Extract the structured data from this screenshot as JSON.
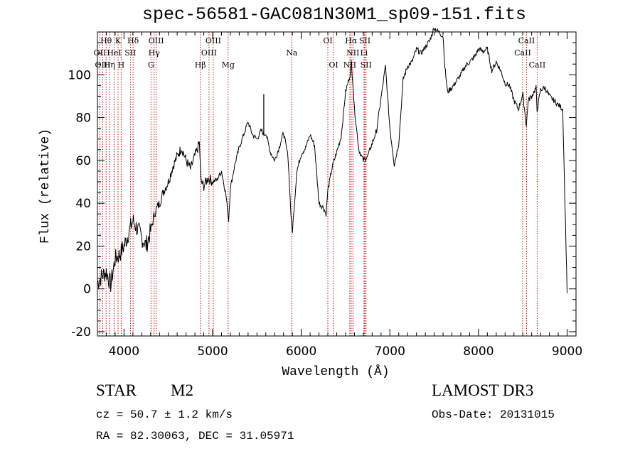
{
  "chart_data": {
    "type": "line",
    "title": "spec-56581-GAC081N30M1_sp09-151.fits",
    "xlabel": "Wavelength (Å)",
    "ylabel": "Flux (relative)",
    "xlim": [
      3700,
      9100
    ],
    "ylim": [
      -22,
      120
    ],
    "x_ticks": [
      4000,
      5000,
      6000,
      7000,
      8000,
      9000
    ],
    "y_ticks": [
      -20,
      0,
      20,
      40,
      60,
      80,
      100
    ],
    "series": [
      {
        "name": "spectrum",
        "x": [
          3700,
          3750,
          3800,
          3850,
          3900,
          3950,
          4000,
          4050,
          4100,
          4150,
          4200,
          4250,
          4300,
          4350,
          4400,
          4450,
          4500,
          4550,
          4600,
          4650,
          4700,
          4750,
          4800,
          4850,
          4870,
          4900,
          4950,
          5000,
          5050,
          5100,
          5150,
          5180,
          5200,
          5250,
          5300,
          5350,
          5400,
          5450,
          5500,
          5550,
          5580,
          5600,
          5650,
          5700,
          5750,
          5800,
          5850,
          5890,
          5900,
          5950,
          6000,
          6050,
          6100,
          6150,
          6200,
          6250,
          6280,
          6300,
          6350,
          6400,
          6450,
          6500,
          6550,
          6563,
          6580,
          6600,
          6650,
          6700,
          6750,
          6800,
          6850,
          6900,
          6950,
          7000,
          7050,
          7100,
          7150,
          7200,
          7250,
          7300,
          7350,
          7400,
          7450,
          7500,
          7550,
          7600,
          7620,
          7650,
          7700,
          7750,
          7800,
          7850,
          7900,
          7950,
          8000,
          8050,
          8100,
          8150,
          8200,
          8250,
          8300,
          8350,
          8400,
          8450,
          8500,
          8540,
          8560,
          8600,
          8650,
          8660,
          8700,
          8750,
          8800,
          8850,
          8900,
          8950,
          9000
        ],
        "y": [
          3,
          6,
          8,
          2,
          14,
          16,
          20,
          26,
          32,
          28,
          24,
          20,
          27,
          36,
          40,
          46,
          50,
          57,
          62,
          66,
          60,
          56,
          62,
          68,
          50,
          48,
          52,
          50,
          51,
          55,
          44,
          32,
          47,
          58,
          66,
          72,
          78,
          72,
          70,
          74,
          72,
          73,
          64,
          60,
          66,
          73,
          62,
          30,
          27,
          55,
          63,
          66,
          72,
          67,
          40,
          38,
          35,
          46,
          57,
          64,
          71,
          92,
          100,
          106,
          98,
          84,
          65,
          60,
          62,
          68,
          74,
          89,
          104,
          75,
          58,
          68,
          98,
          104,
          106,
          112,
          110,
          113,
          116,
          122,
          120,
          118,
          104,
          92,
          94,
          97,
          100,
          104,
          106,
          108,
          112,
          111,
          112,
          102,
          106,
          102,
          96,
          95,
          88,
          84,
          91,
          76,
          88,
          90,
          94,
          83,
          93,
          94,
          90,
          88,
          86,
          84,
          -2
        ]
      }
    ],
    "emission_lines": [
      {
        "label": "Hθ",
        "x": 3798
      },
      {
        "label": "K",
        "x": 3933
      },
      {
        "label": "Hδ",
        "x": 4102
      },
      {
        "label": "OIII",
        "x": 4363
      },
      {
        "label": "OIII",
        "x": 5007
      },
      {
        "label": "OI",
        "x": 6300
      },
      {
        "label": "Hα",
        "x": 6563
      },
      {
        "label": "SII",
        "x": 6717
      },
      {
        "label": "CaII",
        "x": 8542
      }
    ],
    "absorption_lines_row2": [
      {
        "label": "OII",
        "x": 3727
      },
      {
        "label": "HeI",
        "x": 3889
      },
      {
        "label": "SII",
        "x": 4072
      },
      {
        "label": "Hγ",
        "x": 4340
      },
      {
        "label": "OIII",
        "x": 4959
      },
      {
        "label": "Na",
        "x": 5893
      },
      {
        "label": "NII",
        "x": 6583
      },
      {
        "label": "Li",
        "x": 6708
      },
      {
        "label": "CaII",
        "x": 8498
      }
    ],
    "absorption_lines_row3": [
      {
        "label": "OIII",
        "x": 3760
      },
      {
        "label": "Hη",
        "x": 3835
      },
      {
        "label": "H",
        "x": 3968
      },
      {
        "label": "G",
        "x": 4305
      },
      {
        "label": "Hβ",
        "x": 4861
      },
      {
        "label": "Mg",
        "x": 5175
      },
      {
        "label": "OI",
        "x": 6364
      },
      {
        "label": "NII",
        "x": 6548
      },
      {
        "label": "SII",
        "x": 6731
      },
      {
        "label": "CaII",
        "x": 8662
      }
    ],
    "marker_lines": [
      3727,
      3760,
      3798,
      3835,
      3889,
      3933,
      3968,
      4072,
      4102,
      4305,
      4340,
      4363,
      4861,
      4959,
      5007,
      5175,
      5893,
      6300,
      6364,
      6548,
      6563,
      6583,
      6708,
      6717,
      6731,
      8498,
      8542,
      8662
    ]
  },
  "info": {
    "object_class": "STAR",
    "subclass": "M2",
    "survey": "LAMOST DR3",
    "cz": "cz = 50.7 ± 1.2 km/s",
    "obs_date": "Obs-Date: 20131015",
    "coords": "RA =  82.30063, DEC =  31.05971"
  },
  "colors": {
    "spectrum": "#000000",
    "markers": "#cc0000",
    "axes": "#000000"
  }
}
